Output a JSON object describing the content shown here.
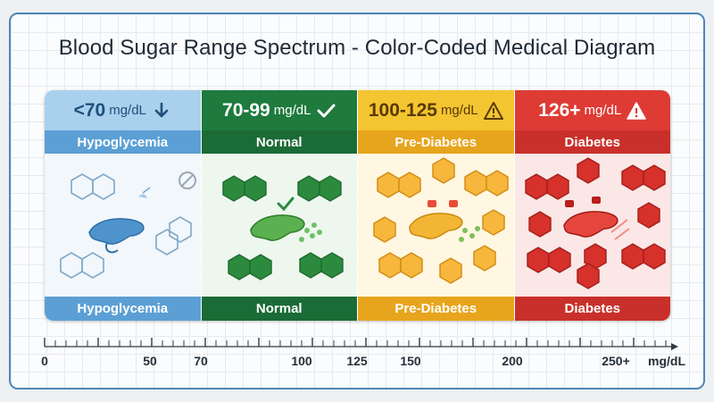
{
  "title": "Blood Sugar Range Spectrum - Color-Coded Medical Diagram",
  "panels": [
    {
      "range": "<70",
      "unit": "mg/dL",
      "name": "Hypoglycemia",
      "icon": "arrow-down-icon",
      "color": "#5b9fd4"
    },
    {
      "range": "70-99",
      "unit": "mg/dL",
      "name": "Normal",
      "icon": "checkmark-icon",
      "color": "#1e7a3d"
    },
    {
      "range": "100-125",
      "unit": "mg/dL",
      "name": "Pre-Diabetes",
      "icon": "warning-triangle-icon",
      "color": "#e7a51d"
    },
    {
      "range": "126+",
      "unit": "mg/dL",
      "name": "Diabetes",
      "icon": "alert-triangle-icon",
      "color": "#de3b35"
    }
  ],
  "scale": {
    "labels": [
      "0",
      "50",
      "70",
      "100",
      "125",
      "150",
      "200",
      "250+"
    ],
    "values": [
      0,
      50,
      70,
      100,
      125,
      150,
      200,
      250
    ],
    "unit": "mg/dL"
  }
}
